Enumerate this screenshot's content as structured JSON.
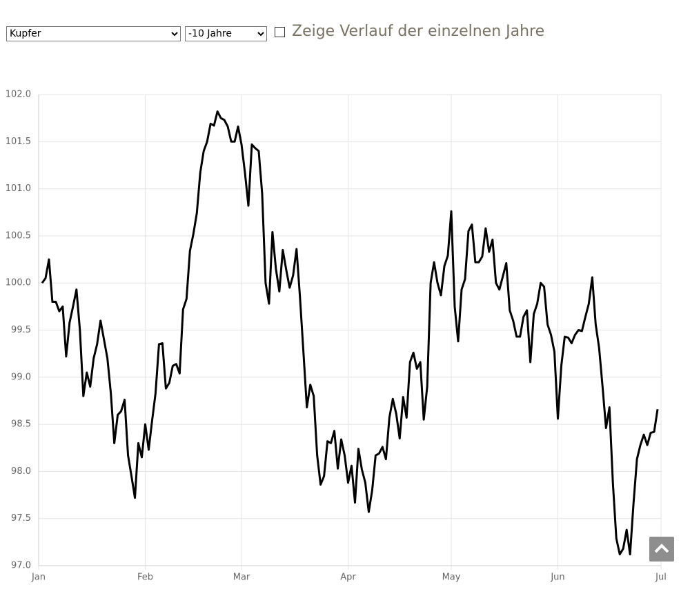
{
  "controls": {
    "metal_select": "Kupfer",
    "period_select": "-10 Jahre",
    "checkbox_label": "Zeige Verlauf der einzelnen Jahre"
  },
  "chart_data": {
    "type": "line",
    "color": "#000000",
    "grid": true,
    "xlim": [
      0,
      181
    ],
    "xticks": [
      {
        "value": 0,
        "label": "Jan"
      },
      {
        "value": 31,
        "label": "Feb"
      },
      {
        "value": 59,
        "label": "Mar"
      },
      {
        "value": 90,
        "label": "Apr"
      },
      {
        "value": 120,
        "label": "May"
      },
      {
        "value": 151,
        "label": "Jun"
      },
      {
        "value": 181,
        "label": "Jul"
      }
    ],
    "ylim": [
      97,
      102
    ],
    "yticks": [
      {
        "value": 97,
        "label": "97.0"
      },
      97.5,
      {
        "value": 98,
        "label": "98.0"
      },
      98.5,
      {
        "value": 99,
        "label": "99.0"
      },
      99.5,
      {
        "value": 100,
        "label": "100.0"
      },
      100.5,
      {
        "value": 101,
        "label": "101.0"
      },
      101.5,
      {
        "value": 102,
        "label": "102.0"
      }
    ],
    "x": [
      1,
      2,
      3,
      4,
      5,
      6,
      7,
      8,
      9,
      10,
      11,
      12,
      13,
      14,
      15,
      16,
      17,
      18,
      19,
      20,
      21,
      22,
      23,
      24,
      25,
      26,
      27,
      28,
      29,
      30,
      31,
      32,
      33,
      34,
      35,
      36,
      37,
      38,
      39,
      40,
      41,
      42,
      43,
      44,
      45,
      46,
      47,
      48,
      49,
      50,
      51,
      52,
      53,
      54,
      55,
      56,
      57,
      58,
      59,
      60,
      61,
      62,
      63,
      64,
      65,
      66,
      67,
      68,
      69,
      70,
      71,
      72,
      73,
      74,
      75,
      76,
      77,
      78,
      79,
      80,
      81,
      82,
      83,
      84,
      85,
      86,
      87,
      88,
      89,
      90,
      91,
      92,
      93,
      94,
      95,
      96,
      97,
      98,
      99,
      100,
      101,
      102,
      103,
      104,
      105,
      106,
      107,
      108,
      109,
      110,
      111,
      112,
      113,
      114,
      115,
      116,
      117,
      118,
      119,
      120,
      121,
      122,
      123,
      124,
      125,
      126,
      127,
      128,
      129,
      130,
      131,
      132,
      133,
      134,
      135,
      136,
      137,
      138,
      139,
      140,
      141,
      142,
      143,
      144,
      145,
      146,
      147,
      148,
      149,
      150,
      151,
      152,
      153,
      154,
      155,
      156,
      157,
      158,
      159,
      160,
      161,
      162,
      163,
      164,
      165,
      166,
      167,
      168,
      169,
      170,
      171,
      172,
      173,
      174,
      175,
      176,
      177,
      178,
      179,
      180
    ],
    "values": [
      100.0,
      100.05,
      100.25,
      99.8,
      99.8,
      99.7,
      99.75,
      99.22,
      99.58,
      99.75,
      99.93,
      99.5,
      98.8,
      99.05,
      98.9,
      99.2,
      99.35,
      99.6,
      99.4,
      99.2,
      98.83,
      98.3,
      98.6,
      98.64,
      98.76,
      98.17,
      97.95,
      97.72,
      98.3,
      98.15,
      98.5,
      98.23,
      98.54,
      98.83,
      99.35,
      99.36,
      98.88,
      98.94,
      99.12,
      99.14,
      99.04,
      99.72,
      99.83,
      100.34,
      100.52,
      100.74,
      101.17,
      101.4,
      101.5,
      101.69,
      101.67,
      101.82,
      101.75,
      101.73,
      101.66,
      101.5,
      101.5,
      101.66,
      101.47,
      101.17,
      100.82,
      101.47,
      101.43,
      101.4,
      100.95,
      100.0,
      99.78,
      100.54,
      100.15,
      99.91,
      100.35,
      100.14,
      99.95,
      100.08,
      100.36,
      99.85,
      99.27,
      98.68,
      98.92,
      98.8,
      98.17,
      97.86,
      97.95,
      98.32,
      98.3,
      98.43,
      98.03,
      98.34,
      98.17,
      97.88,
      98.06,
      97.67,
      98.24,
      98.02,
      97.88,
      97.57,
      97.8,
      98.17,
      98.19,
      98.26,
      98.13,
      98.57,
      98.77,
      98.61,
      98.35,
      98.79,
      98.57,
      99.16,
      99.26,
      99.09,
      99.16,
      98.55,
      98.9,
      100.0,
      100.22,
      100.0,
      99.87,
      100.18,
      100.29,
      100.76,
      99.75,
      99.38,
      99.93,
      100.04,
      100.55,
      100.62,
      100.22,
      100.22,
      100.28,
      100.58,
      100.33,
      100.46,
      100.0,
      99.93,
      100.07,
      100.21,
      99.71,
      99.6,
      99.43,
      99.43,
      99.64,
      99.71,
      99.16,
      99.67,
      99.78,
      100.0,
      99.96,
      99.56,
      99.45,
      99.27,
      98.56,
      99.12,
      99.43,
      99.42,
      99.36,
      99.45,
      99.5,
      99.49,
      99.64,
      99.78,
      100.06,
      99.56,
      99.31,
      98.9,
      98.46,
      98.68,
      97.88,
      97.29,
      97.12,
      97.18,
      97.38,
      97.12,
      97.66,
      98.13,
      98.28,
      98.39,
      98.28,
      98.41,
      98.42,
      98.66
    ]
  }
}
